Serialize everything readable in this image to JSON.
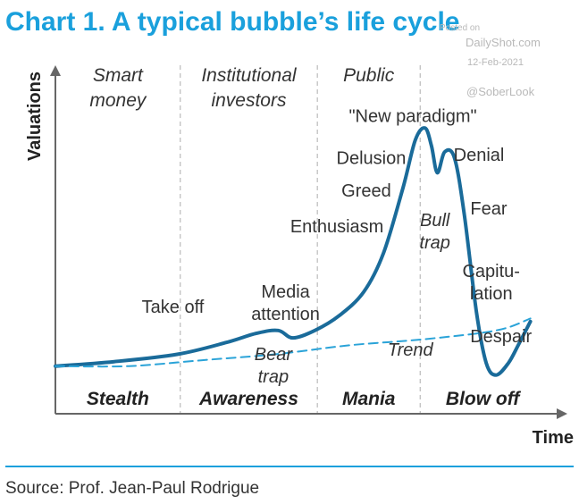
{
  "title": "Chart 1. A typical bubble’s life cycle",
  "watermark": {
    "posted": "Posted on",
    "site": "DailyShot.com",
    "date": "12-Feb-2021",
    "handle": "@SoberLook"
  },
  "source": "Source: Prof. Jean-Paul Rodrigue",
  "colors": {
    "accent": "#1aa0dc",
    "curve": "#1a6b9a",
    "trend": "#2aa3d8",
    "axis": "#666666",
    "divider": "#bbbbbb",
    "text": "#333333"
  },
  "chart_data": {
    "type": "line",
    "xlabel": "Time",
    "ylabel": "Valuations",
    "xlim": [
      0,
      100
    ],
    "ylim": [
      0,
      100
    ],
    "grid": false,
    "phases": [
      {
        "name": "Stealth",
        "investors": [
          "Smart",
          "money"
        ],
        "x_start": 0,
        "x_end": 25.5
      },
      {
        "name": "Awareness",
        "investors": [
          "Institutional",
          "investors"
        ],
        "x_start": 25.5,
        "x_end": 53.5
      },
      {
        "name": "Mania",
        "investors": [
          "Public"
        ],
        "x_start": 53.5,
        "x_end": 74.5
      },
      {
        "name": "Blow off",
        "investors": [],
        "x_start": 74.5,
        "x_end": 100
      }
    ],
    "series": [
      {
        "x": [
          0,
          12,
          25,
          35,
          41,
          45.5,
          48.5,
          53,
          58,
          63,
          67,
          71,
          73.5,
          75.5,
          76.8,
          78,
          79.5,
          81.5,
          83.5,
          86,
          88,
          90,
          92.5,
          94.5,
          97
        ],
        "y": [
          19,
          20.5,
          23,
          27,
          30,
          31,
          28.5,
          31,
          36,
          44,
          57,
          79,
          95,
          99,
          93,
          84,
          91,
          89,
          70,
          37,
          20,
          16,
          20,
          26,
          34
        ],
        "style": "solid"
      },
      {
        "name": "Trend",
        "x": [
          0,
          15,
          30,
          45,
          60,
          75,
          90,
          97
        ],
        "y": [
          19,
          19,
          21,
          23,
          26,
          28,
          31,
          35
        ],
        "style": "dashed"
      }
    ],
    "annotations": [
      {
        "lines": [
          "Take off"
        ],
        "x": 24,
        "y": 37
      },
      {
        "lines": [
          "Media",
          "attention"
        ],
        "x": 47,
        "y": 42
      },
      {
        "lines": [
          "Bear",
          "trap"
        ],
        "x": 44.5,
        "y": 21,
        "italic": true
      },
      {
        "lines": [
          "Enthusiasm"
        ],
        "x": 57.5,
        "y": 64
      },
      {
        "lines": [
          "Greed"
        ],
        "x": 63.5,
        "y": 76
      },
      {
        "lines": [
          "Delusion"
        ],
        "x": 64.5,
        "y": 87
      },
      {
        "lines": [
          "\"New paradigm\""
        ],
        "x": 73,
        "y": 101
      },
      {
        "lines": [
          "Bull",
          "trap"
        ],
        "x": 77.5,
        "y": 66,
        "italic": true
      },
      {
        "lines": [
          "Denial"
        ],
        "x": 86.5,
        "y": 88
      },
      {
        "lines": [
          "Fear"
        ],
        "x": 88.5,
        "y": 70
      },
      {
        "lines": [
          "Capitu-",
          "lation"
        ],
        "x": 89,
        "y": 49
      },
      {
        "lines": [
          "Despair"
        ],
        "x": 91,
        "y": 27
      },
      {
        "lines": [
          "Trend"
        ],
        "x": 72.5,
        "y": 22.5,
        "italic": true
      }
    ]
  }
}
